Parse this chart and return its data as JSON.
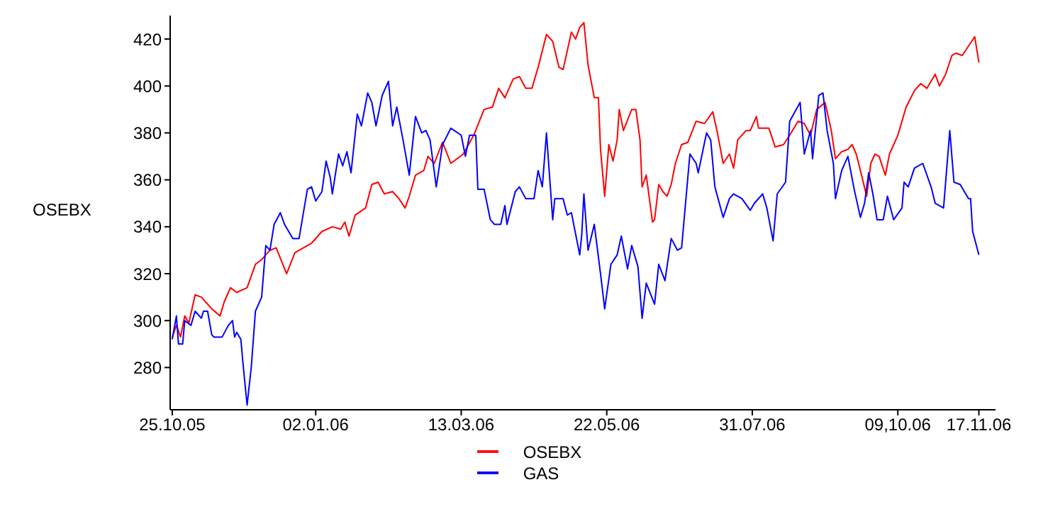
{
  "chart_data": {
    "type": "line",
    "ylabel": "OSEBX",
    "xlim": [
      "2005-10-24",
      "2006-11-25"
    ],
    "ylim": [
      262,
      430
    ],
    "yticks": [
      280,
      300,
      320,
      340,
      360,
      380,
      400,
      420
    ],
    "xticks": [
      {
        "value": "2005-10-25",
        "label": "25.10.05"
      },
      {
        "value": "2006-01-02",
        "label": "02.01.06"
      },
      {
        "value": "2006-03-13",
        "label": "13.03.06"
      },
      {
        "value": "2006-05-22",
        "label": "22.05.06"
      },
      {
        "value": "2006-07-31",
        "label": "31.07.06"
      },
      {
        "value": "2006-10-09",
        "label": "09,10.06"
      },
      {
        "value": "2006-11-17",
        "label": "17.11.06"
      }
    ],
    "grid": false,
    "legend": "bottom",
    "marker": "none",
    "line_style": "solid",
    "series": [
      {
        "name": "OSEBX",
        "color": "#ff0000",
        "x": [
          "2005-10-25",
          "2005-10-27",
          "2005-10-29",
          "2005-10-31",
          "2005-11-02",
          "2005-11-05",
          "2005-11-08",
          "2005-11-10",
          "2005-11-13",
          "2005-11-17",
          "2005-11-19",
          "2005-11-22",
          "2005-11-25",
          "2005-11-30",
          "2005-12-04",
          "2005-12-07",
          "2005-12-11",
          "2005-12-14",
          "2005-12-19",
          "2005-12-23",
          "2005-12-31",
          "2006-01-05",
          "2006-01-10",
          "2006-01-14",
          "2006-01-16",
          "2006-01-18",
          "2006-01-21",
          "2006-01-26",
          "2006-01-29",
          "2006-02-01",
          "2006-02-04",
          "2006-02-08",
          "2006-02-11",
          "2006-02-14",
          "2006-02-16",
          "2006-02-19",
          "2006-02-23",
          "2006-02-25",
          "2006-02-28",
          "2006-03-04",
          "2006-03-08",
          "2006-03-14",
          "2006-03-19",
          "2006-03-24",
          "2006-03-28",
          "2006-03-31",
          "2006-04-03",
          "2006-04-07",
          "2006-04-10",
          "2006-04-13",
          "2006-04-16",
          "2006-04-19",
          "2006-04-23",
          "2006-04-26",
          "2006-04-29",
          "2006-05-01",
          "2006-05-05",
          "2006-05-07",
          "2006-05-09",
          "2006-05-11",
          "2006-05-13",
          "2006-05-16",
          "2006-05-18",
          "2006-05-19",
          "2006-05-21",
          "2006-05-23",
          "2006-05-25",
          "2006-05-27",
          "2006-05-28",
          "2006-05-30",
          "2006-06-03",
          "2006-06-05",
          "2006-06-07",
          "2006-06-08",
          "2006-06-10",
          "2006-06-13",
          "2006-06-14",
          "2006-06-16",
          "2006-06-18",
          "2006-06-20",
          "2006-06-22",
          "2006-06-24",
          "2006-06-27",
          "2006-06-30",
          "2006-07-04",
          "2006-07-08",
          "2006-07-12",
          "2006-07-14",
          "2006-07-17",
          "2006-07-20",
          "2006-07-22",
          "2006-07-24",
          "2006-07-28",
          "2006-07-30",
          "2006-08-02",
          "2006-08-03",
          "2006-08-08",
          "2006-08-11",
          "2006-08-15",
          "2006-08-18",
          "2006-08-22",
          "2006-08-25",
          "2006-08-28",
          "2006-08-31",
          "2006-09-04",
          "2006-09-07",
          "2006-09-09",
          "2006-09-12",
          "2006-09-15",
          "2006-09-17",
          "2006-09-19",
          "2006-09-21",
          "2006-09-24",
          "2006-09-26",
          "2006-09-28",
          "2006-09-30",
          "2006-10-03",
          "2006-10-05",
          "2006-10-09",
          "2006-10-13",
          "2006-10-17",
          "2006-10-20",
          "2006-10-23",
          "2006-10-27",
          "2006-10-29",
          "2006-11-01",
          "2006-11-04",
          "2006-11-06",
          "2006-11-09",
          "2006-11-12",
          "2006-11-15",
          "2006-11-17"
        ],
        "values": [
          293,
          298,
          293,
          302,
          299,
          311,
          310,
          308,
          305,
          302,
          308,
          314,
          312,
          314,
          324,
          326,
          330,
          331,
          320,
          329,
          333,
          338,
          340,
          339,
          342,
          336,
          345,
          348,
          358,
          359,
          354,
          355,
          352,
          348,
          353,
          362,
          364,
          370,
          367,
          376,
          367,
          371,
          379,
          390,
          391,
          399,
          395,
          403,
          404,
          399,
          399,
          408,
          422,
          419,
          408,
          407,
          423,
          420,
          425,
          427,
          409,
          395,
          395,
          373,
          353,
          375,
          368,
          377,
          390,
          381,
          390,
          390,
          377,
          357,
          362,
          342,
          343,
          358,
          355,
          353,
          358,
          367,
          375,
          376,
          385,
          384,
          389,
          381,
          367,
          371,
          365,
          377,
          381,
          381,
          387,
          382,
          382,
          374,
          375,
          379,
          385,
          384,
          379,
          390,
          393,
          381,
          369,
          372,
          373,
          375,
          371,
          364,
          353,
          367,
          371,
          370,
          362,
          371,
          379,
          391,
          398,
          401,
          399,
          405,
          400,
          405,
          413,
          414,
          413,
          417,
          421,
          410
        ]
      },
      {
        "name": "GAS",
        "color": "#0000ff",
        "x": [
          "2005-10-25",
          "2005-10-27",
          "2005-10-28",
          "2005-10-30",
          "2005-10-31",
          "2005-11-03",
          "2005-11-05",
          "2005-11-08",
          "2005-11-09",
          "2005-11-11",
          "2005-11-13",
          "2005-11-14",
          "2005-11-18",
          "2005-11-21",
          "2005-11-23",
          "2005-11-24",
          "2005-11-25",
          "2005-11-27",
          "2005-11-28",
          "2005-11-30",
          "2005-12-02",
          "2005-12-04",
          "2005-12-07",
          "2005-12-09",
          "2005-12-11",
          "2005-12-13",
          "2005-12-16",
          "2005-12-18",
          "2005-12-22",
          "2005-12-25",
          "2005-12-29",
          "2005-12-31",
          "2006-01-02",
          "2006-01-05",
          "2006-01-07",
          "2006-01-09",
          "2006-01-10",
          "2006-01-13",
          "2006-01-15",
          "2006-01-17",
          "2006-01-19",
          "2006-01-22",
          "2006-01-24",
          "2006-01-27",
          "2006-01-29",
          "2006-01-31",
          "2006-02-03",
          "2006-02-06",
          "2006-02-08",
          "2006-02-10",
          "2006-02-13",
          "2006-02-16",
          "2006-02-19",
          "2006-02-22",
          "2006-02-24",
          "2006-02-26",
          "2006-03-01",
          "2006-03-04",
          "2006-03-08",
          "2006-03-13",
          "2006-03-15",
          "2006-03-17",
          "2006-03-20",
          "2006-03-21",
          "2006-03-24",
          "2006-03-27",
          "2006-03-29",
          "2006-04-01",
          "2006-04-03",
          "2006-04-04",
          "2006-04-08",
          "2006-04-10",
          "2006-04-13",
          "2006-04-17",
          "2006-04-19",
          "2006-04-21",
          "2006-04-23",
          "2006-04-26",
          "2006-04-27",
          "2006-05-01",
          "2006-05-03",
          "2006-05-05",
          "2006-05-09",
          "2006-05-10",
          "2006-05-11",
          "2006-05-13",
          "2006-05-16",
          "2006-05-19",
          "2006-05-21",
          "2006-05-24",
          "2006-05-27",
          "2006-05-29",
          "2006-06-01",
          "2006-06-03",
          "2006-06-06",
          "2006-06-08",
          "2006-06-10",
          "2006-06-14",
          "2006-06-16",
          "2006-06-19",
          "2006-06-22",
          "2006-06-25",
          "2006-06-27",
          "2006-07-01",
          "2006-07-04",
          "2006-07-05",
          "2006-07-09",
          "2006-07-11",
          "2006-07-13",
          "2006-07-17",
          "2006-07-20",
          "2006-07-22",
          "2006-07-26",
          "2006-07-30",
          "2006-08-01",
          "2006-08-05",
          "2006-08-07",
          "2006-08-10",
          "2006-08-12",
          "2006-08-16",
          "2006-08-18",
          "2006-08-23",
          "2006-08-25",
          "2006-08-28",
          "2006-08-29",
          "2006-09-01",
          "2006-09-03",
          "2006-09-05",
          "2006-09-08",
          "2006-09-09",
          "2006-09-12",
          "2006-09-15",
          "2006-09-18",
          "2006-09-21",
          "2006-09-23",
          "2006-09-25",
          "2006-09-27",
          "2006-09-29",
          "2006-10-02",
          "2006-10-04",
          "2006-10-07",
          "2006-10-11",
          "2006-10-12",
          "2006-10-14",
          "2006-10-17",
          "2006-10-21",
          "2006-10-25",
          "2006-10-27",
          "2006-10-31",
          "2006-11-03",
          "2006-11-05",
          "2006-11-08",
          "2006-11-12",
          "2006-11-13",
          "2006-11-14",
          "2006-11-17"
        ],
        "values": [
          292,
          302,
          290,
          290,
          300,
          298,
          304,
          301,
          304,
          304,
          294,
          293,
          293,
          298,
          300,
          293,
          295,
          292,
          282,
          264,
          280,
          304,
          310,
          332,
          330,
          341,
          346,
          341,
          335,
          335,
          356,
          357,
          351,
          355,
          368,
          361,
          354,
          371,
          366,
          372,
          363,
          388,
          383,
          397,
          393,
          383,
          396,
          402,
          383,
          391,
          377,
          362,
          387,
          380,
          381,
          377,
          357,
          375,
          382,
          379,
          370,
          379,
          379,
          356,
          356,
          343,
          341,
          341,
          349,
          341,
          355,
          357,
          352,
          352,
          364,
          357,
          380,
          343,
          352,
          352,
          345,
          346,
          328,
          337,
          354,
          330,
          341,
          320,
          305,
          324,
          328,
          336,
          322,
          332,
          323,
          301,
          316,
          307,
          324,
          317,
          335,
          330,
          331,
          371,
          367,
          363,
          380,
          377,
          357,
          344,
          352,
          354,
          352,
          347,
          350,
          354,
          348,
          334,
          354,
          359,
          385,
          393,
          371,
          381,
          369,
          396,
          397,
          381,
          367,
          352,
          364,
          370,
          356,
          344,
          350,
          363,
          354,
          343,
          343,
          353,
          343,
          348,
          359,
          357,
          365,
          367,
          357,
          350,
          348,
          381,
          359,
          358,
          352,
          352,
          338,
          328
        ]
      }
    ]
  }
}
